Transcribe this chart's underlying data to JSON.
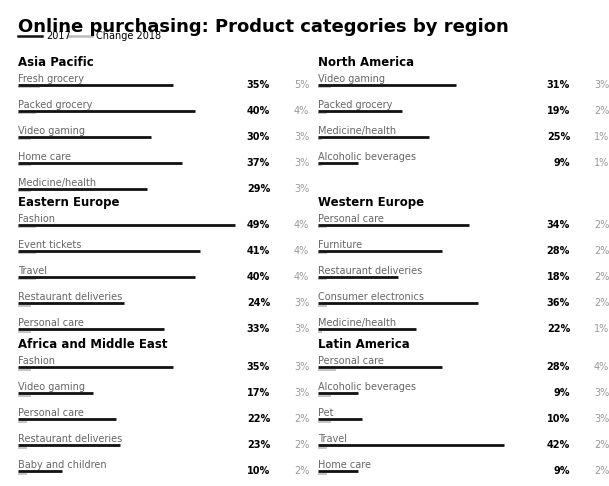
{
  "title": "Online purchasing: Product categories by region",
  "legend": [
    "2017",
    "Change 2018"
  ],
  "regions": [
    {
      "name": "Asia Pacific",
      "col": 0,
      "row": 0,
      "items": [
        {
          "label": "Fresh grocery",
          "val2017": 35,
          "change": 5
        },
        {
          "label": "Packed grocery",
          "val2017": 40,
          "change": 4
        },
        {
          "label": "Video gaming",
          "val2017": 30,
          "change": 3
        },
        {
          "label": "Home care",
          "val2017": 37,
          "change": 3
        },
        {
          "label": "Medicine/health",
          "val2017": 29,
          "change": 3
        }
      ]
    },
    {
      "name": "Eastern Europe",
      "col": 0,
      "row": 1,
      "items": [
        {
          "label": "Fashion",
          "val2017": 49,
          "change": 4
        },
        {
          "label": "Event tickets",
          "val2017": 41,
          "change": 4
        },
        {
          "label": "Travel",
          "val2017": 40,
          "change": 4
        },
        {
          "label": "Restaurant deliveries",
          "val2017": 24,
          "change": 3
        },
        {
          "label": "Personal care",
          "val2017": 33,
          "change": 3
        }
      ]
    },
    {
      "name": "Africa and Middle East",
      "col": 0,
      "row": 2,
      "items": [
        {
          "label": "Fashion",
          "val2017": 35,
          "change": 3
        },
        {
          "label": "Video gaming",
          "val2017": 17,
          "change": 3
        },
        {
          "label": "Personal care",
          "val2017": 22,
          "change": 2
        },
        {
          "label": "Restaurant deliveries",
          "val2017": 23,
          "change": 2
        },
        {
          "label": "Baby and children",
          "val2017": 10,
          "change": 2
        }
      ]
    },
    {
      "name": "North America",
      "col": 1,
      "row": 0,
      "items": [
        {
          "label": "Video gaming",
          "val2017": 31,
          "change": 3
        },
        {
          "label": "Packed grocery",
          "val2017": 19,
          "change": 2
        },
        {
          "label": "Medicine/health",
          "val2017": 25,
          "change": 1
        },
        {
          "label": "Alcoholic beverages",
          "val2017": 9,
          "change": 1
        }
      ]
    },
    {
      "name": "Western Europe",
      "col": 1,
      "row": 1,
      "items": [
        {
          "label": "Personal care",
          "val2017": 34,
          "change": 2
        },
        {
          "label": "Furniture",
          "val2017": 28,
          "change": 2
        },
        {
          "label": "Restaurant deliveries",
          "val2017": 18,
          "change": 2
        },
        {
          "label": "Consumer electronics",
          "val2017": 36,
          "change": 2
        },
        {
          "label": "Medicine/health",
          "val2017": 22,
          "change": 1
        }
      ]
    },
    {
      "name": "Latin America",
      "col": 1,
      "row": 2,
      "items": [
        {
          "label": "Personal care",
          "val2017": 28,
          "change": 4
        },
        {
          "label": "Alcoholic beverages",
          "val2017": 9,
          "change": 3
        },
        {
          "label": "Pet",
          "val2017": 10,
          "change": 3
        },
        {
          "label": "Travel",
          "val2017": 42,
          "change": 2
        },
        {
          "label": "Home care",
          "val2017": 9,
          "change": 2
        }
      ]
    }
  ],
  "bar_color_2017": "#111111",
  "bar_color_change": "#bbbbbb",
  "background_color": "#ffffff",
  "title_fontsize": 13,
  "region_fontsize": 8.5,
  "label_fontsize": 7,
  "value_fontsize": 7,
  "max_val": 55
}
